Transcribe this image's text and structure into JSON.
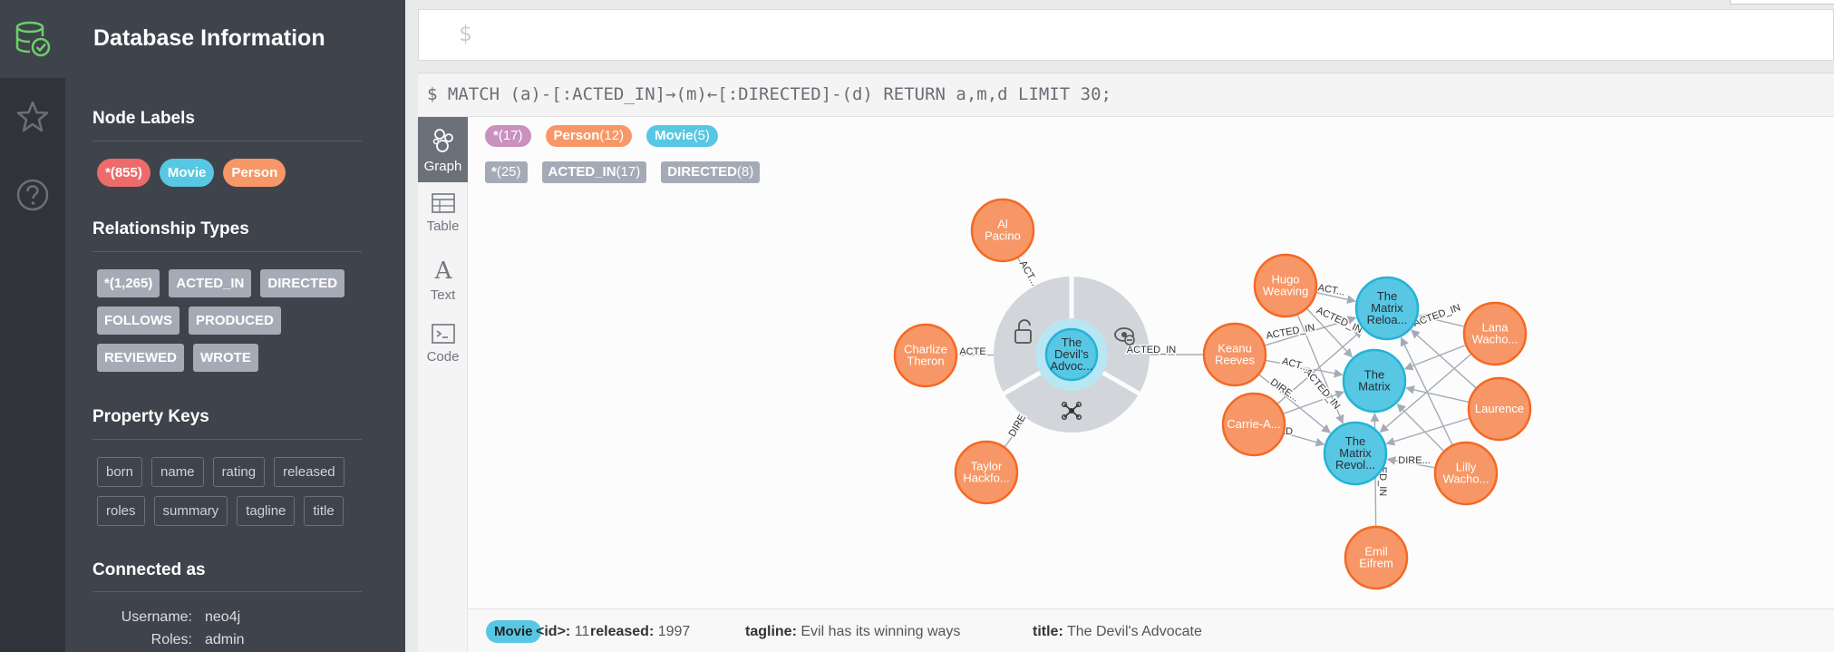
{
  "rail": {
    "items": [
      {
        "name": "database-icon",
        "active": true
      },
      {
        "name": "star-icon",
        "active": false
      },
      {
        "name": "help-icon",
        "active": false
      }
    ]
  },
  "drawer": {
    "title": "Database Information",
    "node_labels": {
      "title": "Node Labels",
      "items": [
        {
          "label": "*(855)",
          "color": "#ed6b6b"
        },
        {
          "label": "Movie",
          "color": "#57c7e3"
        },
        {
          "label": "Person",
          "color": "#f79767"
        }
      ]
    },
    "relationship_types": {
      "title": "Relationship Types",
      "items": [
        "*(1,265)",
        "ACTED_IN",
        "DIRECTED",
        "FOLLOWS",
        "PRODUCED",
        "REVIEWED",
        "WROTE"
      ]
    },
    "property_keys": {
      "title": "Property Keys",
      "items": [
        "born",
        "name",
        "rating",
        "released",
        "roles",
        "summary",
        "tagline",
        "title"
      ]
    },
    "connected": {
      "title": "Connected as",
      "rows": [
        {
          "label": "Username:",
          "value": "neo4j"
        },
        {
          "label": "Roles:",
          "value": "admin"
        }
      ]
    }
  },
  "editor": {
    "prompt": "$"
  },
  "frame": {
    "query": "$ MATCH (a)-[:ACTED_IN]→(m)←[:DIRECTED]-(d) RETURN a,m,d LIMIT 30;",
    "tabs": [
      {
        "label": "Graph",
        "icon": "graph-icon",
        "active": true
      },
      {
        "label": "Table",
        "icon": "table-icon",
        "active": false
      },
      {
        "label": "Text",
        "icon": "text-icon",
        "active": false
      },
      {
        "label": "Code",
        "icon": "code-icon",
        "active": false
      }
    ],
    "node_legend": [
      {
        "label": "*",
        "count": "(17)",
        "color": "#c990c0"
      },
      {
        "label": "Person",
        "count": "(12)",
        "color": "#f79767"
      },
      {
        "label": "Movie",
        "count": "(5)",
        "color": "#57c7e3"
      }
    ],
    "rel_legend": [
      {
        "label": "*",
        "count": "(25)"
      },
      {
        "label": "ACTED_IN",
        "count": "(17)"
      },
      {
        "label": "DIRECTED",
        "count": "(8)"
      }
    ]
  },
  "graph": {
    "nodes": [
      {
        "id": "alpacino",
        "label": "Al Pacino",
        "type": "Person"
      },
      {
        "id": "charlize",
        "label": "Charlize Theron",
        "type": "Person"
      },
      {
        "id": "taylor",
        "label": "Taylor Hackfo...",
        "type": "Person"
      },
      {
        "id": "devils",
        "label": "The Devil's Advoc...",
        "type": "Movie"
      },
      {
        "id": "hugo",
        "label": "Hugo Weaving",
        "type": "Person"
      },
      {
        "id": "keanu",
        "label": "Keanu Reeves",
        "type": "Person"
      },
      {
        "id": "carrie",
        "label": "Carrie-A...",
        "type": "Person"
      },
      {
        "id": "reloaded",
        "label": "The Matrix Reloa...",
        "type": "Movie"
      },
      {
        "id": "matrix",
        "label": "The Matrix",
        "type": "Movie"
      },
      {
        "id": "revol",
        "label": "The Matrix Revol...",
        "type": "Movie"
      },
      {
        "id": "lana",
        "label": "Lana Wacho...",
        "type": "Person"
      },
      {
        "id": "laurence",
        "label": "Laurence",
        "type": "Person"
      },
      {
        "id": "lilly",
        "label": "Lilly Wacho...",
        "type": "Person"
      },
      {
        "id": "emil",
        "label": "Emil Eifrem",
        "type": "Person"
      }
    ],
    "edge_labels": [
      "ACT...",
      "ACTE",
      "DIRE",
      "ACTED_IN",
      "ACT...",
      "ACTED_IN",
      "ACTED_IN",
      "ACTED_IN",
      "ACT...",
      "DIRE...",
      "DIRECTED",
      "ACTED_IN",
      "DIRE...",
      "ED_IN"
    ]
  },
  "footer": {
    "label": "Movie",
    "props": [
      {
        "key": "<id>:",
        "value": "11"
      },
      {
        "key": "released:",
        "value": "1997"
      },
      {
        "key": "tagline:",
        "value": "Evil has its winning ways"
      },
      {
        "key": "title:",
        "value": "The Devil's Advocate"
      }
    ]
  },
  "colors": {
    "person": "#f79767",
    "person_border": "#f36924",
    "movie": "#57c7e3",
    "movie_border": "#23b3d7"
  }
}
